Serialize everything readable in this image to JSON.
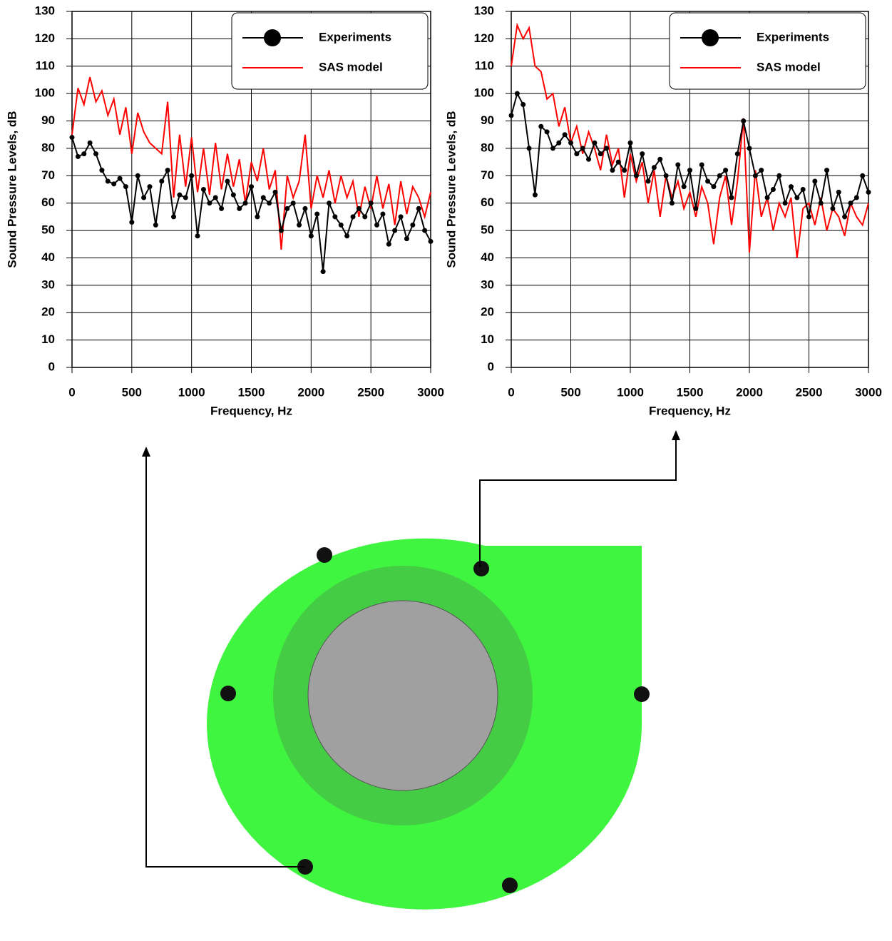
{
  "chart_data": [
    {
      "type": "line",
      "xlabel": "Frequency, Hz",
      "ylabel": "Sound Pressure Levels, dB",
      "x": [
        0,
        50,
        100,
        150,
        200,
        250,
        300,
        350,
        400,
        450,
        500,
        550,
        600,
        650,
        700,
        750,
        800,
        850,
        900,
        950,
        1000,
        1050,
        1100,
        1150,
        1200,
        1250,
        1300,
        1350,
        1400,
        1450,
        1500,
        1550,
        1600,
        1650,
        1700,
        1750,
        1800,
        1850,
        1900,
        1950,
        2000,
        2050,
        2100,
        2150,
        2200,
        2250,
        2300,
        2350,
        2400,
        2450,
        2500,
        2550,
        2600,
        2650,
        2700,
        2750,
        2800,
        2850,
        2900,
        2950,
        3000
      ],
      "series": [
        {
          "name": "Experiments",
          "color": "#000000",
          "marker": "circle",
          "values": [
            84,
            77,
            78,
            82,
            78,
            72,
            68,
            67,
            69,
            66,
            53,
            70,
            62,
            66,
            52,
            68,
            72,
            55,
            63,
            62,
            70,
            48,
            65,
            60,
            62,
            58,
            68,
            63,
            58,
            60,
            66,
            55,
            62,
            60,
            64,
            50,
            58,
            60,
            52,
            58,
            48,
            56,
            35,
            60,
            55,
            52,
            48,
            55,
            58,
            55,
            60,
            52,
            56,
            45,
            50,
            55,
            47,
            52,
            58,
            50,
            46
          ]
        },
        {
          "name": "SAS model",
          "color": "#ff0000",
          "values": [
            85,
            102,
            96,
            106,
            97,
            101,
            92,
            98,
            85,
            95,
            78,
            93,
            86,
            82,
            80,
            78,
            97,
            62,
            85,
            66,
            84,
            64,
            80,
            63,
            82,
            65,
            78,
            66,
            76,
            60,
            75,
            68,
            80,
            65,
            72,
            43,
            70,
            62,
            68,
            85,
            58,
            70,
            62,
            72,
            60,
            70,
            62,
            68,
            55,
            66,
            58,
            70,
            58,
            67,
            52,
            68,
            56,
            66,
            62,
            55,
            64
          ]
        }
      ],
      "xlim": [
        0,
        3000
      ],
      "xticks": [
        0,
        500,
        1000,
        1500,
        2000,
        2500,
        3000
      ],
      "ylim": [
        0,
        130
      ],
      "yticks": [
        0,
        10,
        20,
        30,
        40,
        50,
        60,
        70,
        80,
        90,
        100,
        110,
        120,
        130
      ],
      "grid": true,
      "legend": "upper right"
    },
    {
      "type": "line",
      "xlabel": "Frequency, Hz",
      "ylabel": "Sound Pressure Levels, dB",
      "x": [
        0,
        50,
        100,
        150,
        200,
        250,
        300,
        350,
        400,
        450,
        500,
        550,
        600,
        650,
        700,
        750,
        800,
        850,
        900,
        950,
        1000,
        1050,
        1100,
        1150,
        1200,
        1250,
        1300,
        1350,
        1400,
        1450,
        1500,
        1550,
        1600,
        1650,
        1700,
        1750,
        1800,
        1850,
        1900,
        1950,
        2000,
        2050,
        2100,
        2150,
        2200,
        2250,
        2300,
        2350,
        2400,
        2450,
        2500,
        2550,
        2600,
        2650,
        2700,
        2750,
        2800,
        2850,
        2900,
        2950,
        3000
      ],
      "series": [
        {
          "name": "Experiments",
          "color": "#000000",
          "marker": "circle",
          "values": [
            92,
            100,
            96,
            80,
            63,
            88,
            86,
            80,
            82,
            85,
            82,
            78,
            80,
            76,
            82,
            78,
            80,
            72,
            75,
            72,
            82,
            70,
            78,
            68,
            73,
            76,
            70,
            60,
            74,
            66,
            72,
            58,
            74,
            68,
            66,
            70,
            72,
            62,
            78,
            90,
            80,
            70,
            72,
            62,
            65,
            70,
            60,
            66,
            62,
            65,
            55,
            68,
            60,
            72,
            58,
            64,
            55,
            60,
            62,
            70,
            64
          ]
        },
        {
          "name": "SAS model",
          "color": "#ff0000",
          "values": [
            110,
            125,
            120,
            124,
            110,
            108,
            98,
            100,
            88,
            95,
            82,
            88,
            78,
            86,
            80,
            72,
            85,
            74,
            80,
            62,
            78,
            68,
            75,
            60,
            72,
            55,
            70,
            62,
            68,
            58,
            64,
            55,
            66,
            60,
            45,
            62,
            70,
            52,
            68,
            91,
            42,
            72,
            55,
            62,
            50,
            60,
            55,
            62,
            40,
            58,
            60,
            52,
            62,
            50,
            58,
            55,
            48,
            60,
            55,
            52,
            60
          ]
        }
      ],
      "xlim": [
        0,
        3000
      ],
      "xticks": [
        0,
        500,
        1000,
        1500,
        2000,
        2500,
        3000
      ],
      "ylim": [
        0,
        130
      ],
      "yticks": [
        0,
        10,
        20,
        30,
        40,
        50,
        60,
        70,
        80,
        90,
        100,
        110,
        120,
        130
      ],
      "grid": true,
      "legend": "upper right"
    }
  ]
}
